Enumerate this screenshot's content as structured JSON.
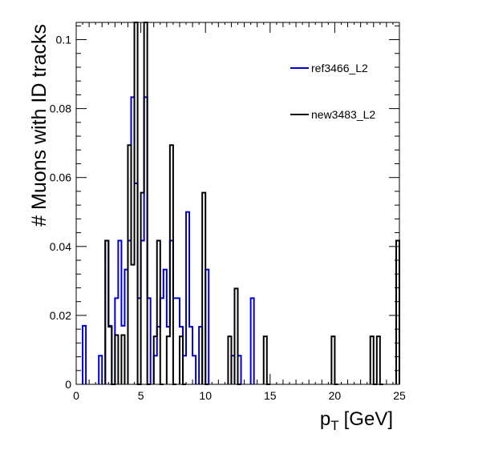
{
  "chart_data": {
    "type": "histogram",
    "title": "",
    "xlabel_main": "p",
    "xlabel_sub": "T",
    "xlabel_unit": "[GeV]",
    "ylabel": "# Muons with ID tracks",
    "xlim": [
      0,
      25
    ],
    "ylim": [
      0,
      0.105
    ],
    "bin_width": 0.25,
    "x_ticks": [
      0,
      5,
      10,
      15,
      20,
      25
    ],
    "x_tick_labels": [
      "0",
      "5",
      "10",
      "15",
      "20",
      "25"
    ],
    "y_ticks": [
      0,
      0.02,
      0.04,
      0.06,
      0.08,
      0.1
    ],
    "y_tick_labels": [
      "0",
      "0.02",
      "0.04",
      "0.06",
      "0.08",
      "0.1"
    ],
    "grid": false,
    "legend_position": "top-right",
    "series": [
      {
        "name": "ref3466_L2",
        "color": "#0000cc",
        "bins": [
          [
            0.5,
            0.017
          ],
          [
            1.75,
            0.0083
          ],
          [
            2.25,
            0.0417
          ],
          [
            2.5,
            0.017
          ],
          [
            3.0,
            0.025
          ],
          [
            3.25,
            0.0417
          ],
          [
            3.5,
            0.017
          ],
          [
            3.75,
            0.0333
          ],
          [
            4.0,
            0.0417
          ],
          [
            4.25,
            0.0833
          ],
          [
            4.5,
            0.0583
          ],
          [
            4.75,
            0.025
          ],
          [
            5.0,
            0.0417
          ],
          [
            5.25,
            0.0833
          ],
          [
            5.5,
            0.025
          ],
          [
            6.0,
            0.0083
          ],
          [
            6.25,
            0.0167
          ],
          [
            6.5,
            0.025
          ],
          [
            6.75,
            0.0333
          ],
          [
            7.0,
            0.0167
          ],
          [
            7.25,
            0.0417
          ],
          [
            7.5,
            0.025
          ],
          [
            7.75,
            0.025
          ],
          [
            8.0,
            0.0167
          ],
          [
            8.25,
            0.0083
          ],
          [
            8.5,
            0.05
          ],
          [
            8.75,
            0.0167
          ],
          [
            9.0,
            0.0083
          ],
          [
            9.5,
            0.0167
          ],
          [
            10.0,
            0.0333
          ],
          [
            12.0,
            0.0083
          ],
          [
            12.5,
            0.0083
          ],
          [
            13.5,
            0.025
          ]
        ]
      },
      {
        "name": "new3483_L2",
        "color": "#000000",
        "bins": [
          [
            2.25,
            0.0417
          ],
          [
            2.5,
            0.0167
          ],
          [
            2.75,
            0.0
          ],
          [
            3.0,
            0.0143
          ],
          [
            3.5,
            0.0143
          ],
          [
            4.0,
            0.0694
          ],
          [
            4.25,
            0.0347
          ],
          [
            4.5,
            0.1111
          ],
          [
            4.75,
            0.0
          ],
          [
            5.0,
            0.0556
          ],
          [
            5.25,
            0.1111
          ],
          [
            5.5,
            0.0
          ],
          [
            6.0,
            0.0139
          ],
          [
            6.25,
            0.0417
          ],
          [
            6.5,
            0.0
          ],
          [
            7.0,
            0.0139
          ],
          [
            7.25,
            0.0694
          ],
          [
            7.5,
            0.0
          ],
          [
            8.0,
            0.0139
          ],
          [
            8.25,
            0.0
          ],
          [
            9.75,
            0.0556
          ],
          [
            10.0,
            0.0
          ],
          [
            11.75,
            0.0139
          ],
          [
            12.25,
            0.0278
          ],
          [
            12.5,
            0.0
          ],
          [
            14.5,
            0.0139
          ],
          [
            14.75,
            0.0
          ],
          [
            19.75,
            0.0139
          ],
          [
            20.0,
            0.0
          ],
          [
            22.75,
            0.0139
          ],
          [
            23.0,
            0.0
          ],
          [
            23.25,
            0.0139
          ],
          [
            23.5,
            0.0
          ],
          [
            24.75,
            0.0417
          ]
        ]
      }
    ]
  }
}
